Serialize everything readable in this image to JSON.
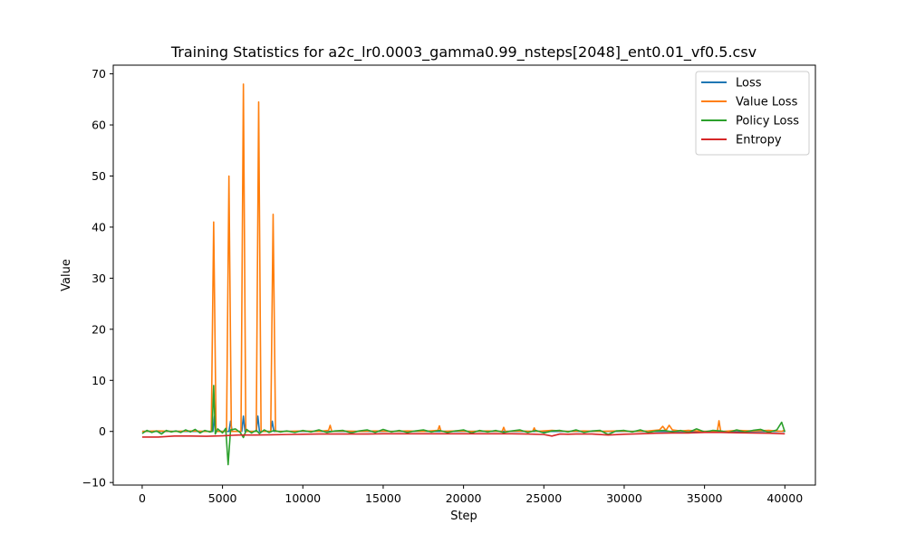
{
  "chart_data": {
    "type": "line",
    "title": "Training Statistics for a2c_lr0.0003_gamma0.99_nsteps[2048]_ent0.01_vf0.5.csv",
    "xlabel": "Step",
    "ylabel": "Value",
    "xlim": [
      -1800,
      41900
    ],
    "ylim": [
      -10.5,
      71.7
    ],
    "xticks": [
      0,
      5000,
      10000,
      15000,
      20000,
      25000,
      30000,
      35000,
      40000
    ],
    "yticks": [
      -10,
      0,
      10,
      20,
      30,
      40,
      50,
      60,
      70
    ],
    "grid": false,
    "legend_position": "top-right",
    "series": [
      {
        "name": "Loss",
        "color": "#1f77b4",
        "x": [
          0,
          4400,
          4500,
          4600,
          5400,
          5500,
          5600,
          6200,
          6300,
          6400,
          7100,
          7200,
          7300,
          8000,
          8100,
          8200,
          40000
        ],
        "y": [
          0.0,
          0.0,
          3.0,
          0.0,
          0.0,
          2.0,
          0.0,
          0.0,
          3.0,
          0.0,
          0.0,
          3.0,
          0.0,
          0.0,
          2.0,
          0.0,
          0.0
        ]
      },
      {
        "name": "Value Loss",
        "color": "#ff7f0e",
        "x": [
          0,
          1000,
          2000,
          3000,
          4000,
          4300,
          4450,
          4600,
          5000,
          5250,
          5400,
          5550,
          6000,
          6150,
          6300,
          6450,
          7000,
          7100,
          7250,
          7400,
          7900,
          8000,
          8150,
          8300,
          9000,
          10000,
          11000,
          11600,
          11700,
          11800,
          12500,
          13500,
          14500,
          15500,
          16500,
          17500,
          18400,
          18500,
          18600,
          19500,
          20500,
          21500,
          22400,
          22500,
          22600,
          23500,
          24300,
          24400,
          24500,
          25500,
          26500,
          27500,
          28500,
          29500,
          30500,
          31500,
          32200,
          32400,
          32600,
          32800,
          33000,
          33500,
          34000,
          35000,
          35800,
          35900,
          36000,
          36200,
          37000,
          38000,
          39000,
          39800,
          40000
        ],
        "y": [
          0.0,
          0.1,
          0.0,
          0.1,
          0.0,
          0.0,
          41.0,
          0.0,
          0.0,
          0.0,
          50.0,
          0.0,
          0.0,
          0.0,
          68.0,
          0.0,
          0.0,
          0.0,
          64.5,
          0.0,
          0.0,
          0.0,
          42.5,
          0.0,
          0.0,
          0.1,
          0.0,
          0.2,
          1.2,
          0.0,
          0.1,
          0.0,
          0.1,
          0.0,
          0.1,
          0.0,
          0.2,
          1.1,
          0.0,
          0.1,
          0.0,
          0.1,
          0.0,
          0.8,
          0.0,
          0.1,
          0.0,
          0.7,
          0.0,
          0.2,
          0.0,
          0.1,
          0.0,
          0.1,
          0.0,
          0.1,
          0.3,
          1.0,
          0.2,
          1.2,
          0.3,
          0.1,
          0.2,
          0.0,
          0.1,
          2.1,
          0.1,
          0.0,
          0.2,
          0.1,
          0.2,
          0.0,
          0.3
        ]
      },
      {
        "name": "Policy Loss",
        "color": "#2ca02c",
        "x": [
          0,
          300,
          600,
          900,
          1200,
          1500,
          1800,
          2100,
          2400,
          2700,
          3000,
          3300,
          3600,
          3900,
          4200,
          4350,
          4450,
          4550,
          4700,
          5000,
          5200,
          5350,
          5500,
          5800,
          6100,
          6300,
          6500,
          6800,
          7100,
          7300,
          7600,
          7900,
          8200,
          8600,
          9000,
          9500,
          10000,
          10500,
          11000,
          11500,
          12000,
          12500,
          13000,
          13500,
          14000,
          14500,
          15000,
          15500,
          16000,
          16500,
          17000,
          17500,
          18000,
          18500,
          19000,
          19500,
          20000,
          20500,
          21000,
          21500,
          22000,
          22500,
          23000,
          23500,
          24000,
          24500,
          25000,
          25500,
          26000,
          26500,
          27000,
          27500,
          28000,
          28500,
          29000,
          29500,
          30000,
          30500,
          31000,
          31500,
          32000,
          32500,
          33000,
          33500,
          34000,
          34500,
          35000,
          35500,
          36000,
          36500,
          37000,
          37500,
          38000,
          38500,
          39000,
          39500,
          39800,
          40000
        ],
        "y": [
          -0.4,
          0.2,
          -0.2,
          0.1,
          -0.5,
          0.2,
          -0.1,
          0.1,
          -0.2,
          0.3,
          -0.1,
          0.4,
          -0.3,
          0.2,
          -0.1,
          0.0,
          9.0,
          -0.5,
          0.5,
          -0.3,
          0.6,
          -6.5,
          0.3,
          0.5,
          -0.2,
          -1.2,
          0.4,
          -0.3,
          0.2,
          -0.4,
          0.3,
          -0.2,
          0.2,
          -0.1,
          0.1,
          -0.2,
          0.2,
          -0.1,
          0.3,
          -0.2,
          0.1,
          0.2,
          -0.3,
          0.1,
          0.3,
          -0.2,
          0.4,
          -0.1,
          0.2,
          -0.2,
          0.1,
          0.3,
          -0.1,
          0.2,
          -0.2,
          0.1,
          0.3,
          -0.3,
          0.2,
          -0.1,
          0.2,
          -0.2,
          0.1,
          0.3,
          -0.2,
          0.2,
          -0.3,
          0.1,
          0.2,
          -0.1,
          0.3,
          -0.2,
          0.1,
          0.2,
          -0.6,
          0.1,
          0.2,
          -0.1,
          0.3,
          -0.2,
          0.1,
          0.2,
          -0.1,
          0.2,
          -0.2,
          0.5,
          -0.1,
          0.2,
          0.1,
          -0.2,
          0.3,
          -0.1,
          0.2,
          0.4,
          -0.2,
          0.3,
          1.8,
          -0.1
        ]
      },
      {
        "name": "Entropy",
        "color": "#d62728",
        "x": [
          0,
          1000,
          2000,
          3000,
          4000,
          5000,
          6000,
          7000,
          8000,
          9000,
          10000,
          11000,
          12000,
          13000,
          14000,
          15000,
          16000,
          17000,
          18000,
          19000,
          20000,
          21000,
          22000,
          23000,
          24000,
          25000,
          25500,
          26000,
          26500,
          27000,
          28000,
          29000,
          30000,
          31000,
          32000,
          33000,
          34000,
          35000,
          36000,
          37000,
          38000,
          39000,
          40000
        ],
        "y": [
          -1.1,
          -1.1,
          -0.9,
          -0.9,
          -0.95,
          -0.85,
          -0.7,
          -0.7,
          -0.65,
          -0.6,
          -0.55,
          -0.5,
          -0.5,
          -0.5,
          -0.5,
          -0.45,
          -0.45,
          -0.45,
          -0.45,
          -0.45,
          -0.45,
          -0.45,
          -0.45,
          -0.45,
          -0.5,
          -0.6,
          -0.9,
          -0.5,
          -0.55,
          -0.5,
          -0.5,
          -0.7,
          -0.55,
          -0.45,
          -0.35,
          -0.3,
          -0.3,
          -0.2,
          -0.2,
          -0.25,
          -0.3,
          -0.35,
          -0.45
        ]
      }
    ]
  }
}
